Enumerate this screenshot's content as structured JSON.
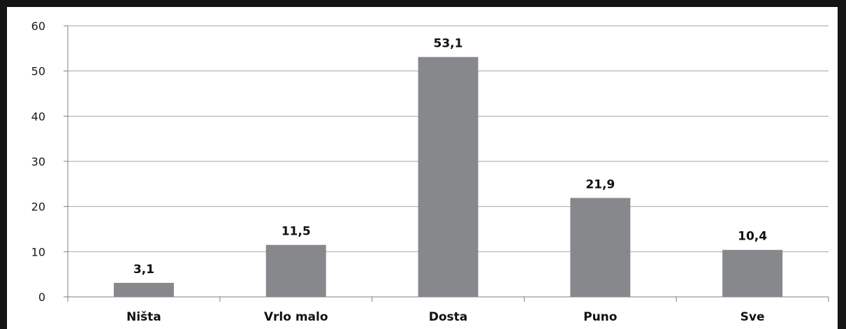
{
  "chart_data": {
    "type": "bar",
    "categories": [
      "Ništa",
      "Vrlo malo",
      "Dosta",
      "Puno",
      "Sve"
    ],
    "values": [
      3.1,
      11.5,
      53.1,
      21.9,
      10.4
    ],
    "data_labels": [
      "3,1",
      "11,5",
      "53,1",
      "21,9",
      "10,4"
    ],
    "y_ticks": [
      "0",
      "10",
      "20",
      "30",
      "40",
      "50",
      "60"
    ],
    "ylim": [
      0,
      60
    ],
    "grid": true,
    "legend": "none",
    "title": "",
    "xlabel": "",
    "ylabel": "",
    "colors": {
      "bar": "#87888c",
      "grid": "#a6a6a6",
      "axis": "#7f7f7f",
      "frame": "#151515"
    }
  }
}
